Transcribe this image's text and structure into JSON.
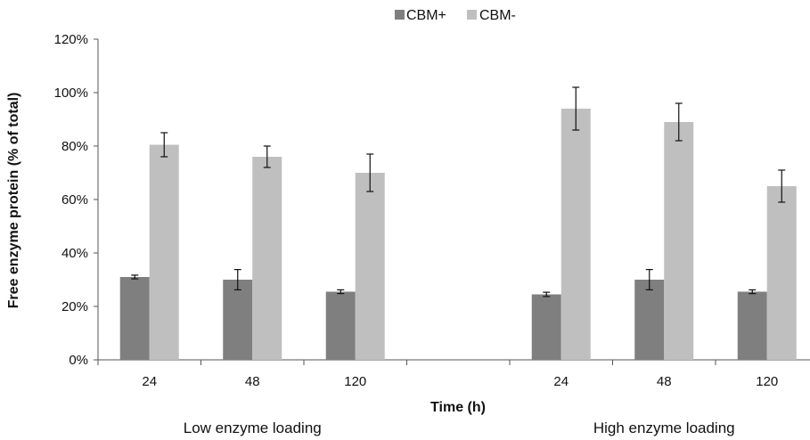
{
  "chart_data": {
    "type": "bar",
    "title": "",
    "xlabel": "Time (h)",
    "ylabel": "Free enzyme protein (% of total)",
    "ylim": [
      0,
      120
    ],
    "yticks": [
      "0%",
      "20%",
      "40%",
      "60%",
      "80%",
      "100%",
      "120%"
    ],
    "y_unit": "%",
    "grid": false,
    "legend_position": "top-center",
    "groups": [
      "Low enzyme loading",
      "",
      "High enzyme loading"
    ],
    "categories": [
      "24",
      "48",
      "120",
      "",
      "24",
      "48",
      "120"
    ],
    "series": [
      {
        "name": "CBM+",
        "color": "#7f7f7f",
        "values": [
          31,
          30,
          25.5,
          null,
          24.5,
          30,
          25.5
        ],
        "errors": [
          0.7,
          3.8,
          0.7,
          null,
          0.8,
          3.8,
          0.7
        ]
      },
      {
        "name": "CBM-",
        "color": "#bfbfbf",
        "values": [
          80.5,
          76,
          70,
          null,
          94,
          89,
          65
        ],
        "errors": [
          4.5,
          4,
          7,
          null,
          8,
          7,
          6
        ]
      }
    ]
  }
}
